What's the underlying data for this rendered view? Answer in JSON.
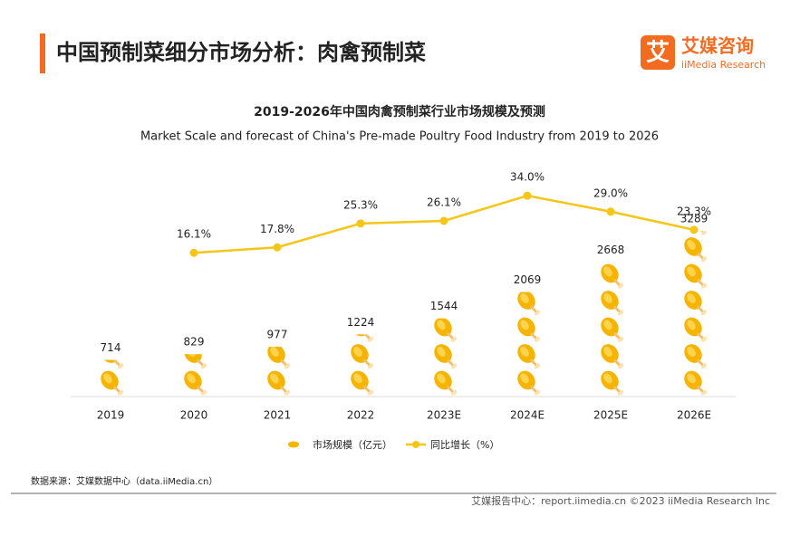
{
  "header": {
    "title": "中国预制菜细分市场分析：肉禽预制菜",
    "logo_mark": "艾",
    "logo_name": "艾媒咨询",
    "logo_sub": "iiMedia Research"
  },
  "footer": {
    "source": "数据来源：艾媒数据中心（data.iiMedia.cn）",
    "copyright": "艾媒报告中心：report.iimedia.cn  ©2023  iiMedia Research  Inc"
  },
  "chart_data": {
    "type": "pictograph-line",
    "title": "2019-2026年中国肉禽预制菜行业市场规模及预测",
    "subtitle": "Market Scale and forecast of China's Pre-made Poultry Food Industry from 2019 to 2026",
    "categories": [
      "2019",
      "2020",
      "2021",
      "2022",
      "2023E",
      "2024E",
      "2025E",
      "2026E"
    ],
    "ylim": [
      0,
      3600
    ],
    "y2lim": [
      0,
      40
    ],
    "series": [
      {
        "name": "市场规模（亿元）",
        "color": "#f5b400",
        "values": [
          714,
          829,
          977,
          1224,
          1544,
          2069,
          2668,
          3289
        ]
      },
      {
        "name": "同比增长（%）",
        "color": "#f5c518",
        "axis": "y2",
        "values": [
          null,
          16.1,
          17.8,
          25.3,
          26.1,
          34.0,
          29.0,
          23.3
        ],
        "value_labels": [
          null,
          "16.1%",
          "17.8%",
          "25.3%",
          "26.1%",
          "34.0%",
          "29.0%",
          "23.3%"
        ]
      }
    ]
  }
}
